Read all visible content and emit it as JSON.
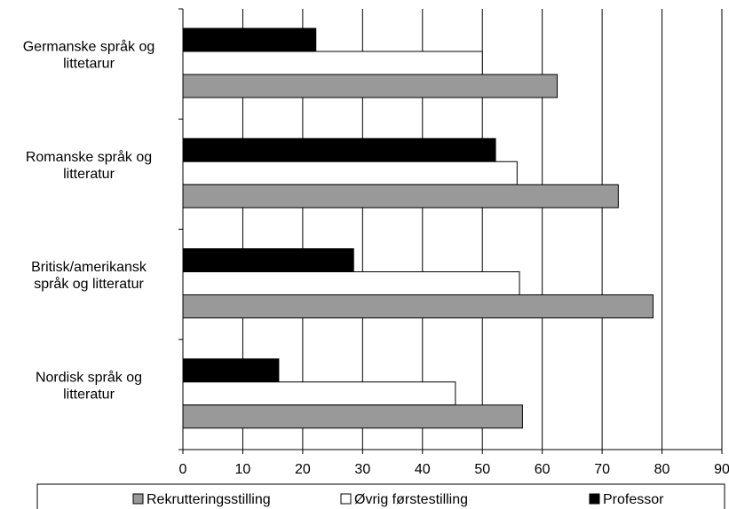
{
  "chart_data": {
    "type": "bar",
    "orientation": "horizontal",
    "categories": [
      [
        "Germanske språk og",
        "littetarur"
      ],
      [
        "Romanske språk og",
        "litteratur"
      ],
      [
        "Britisk/amerikansk",
        "språk og litteratur"
      ],
      [
        "Nordisk språk og",
        "litteratur"
      ]
    ],
    "series": [
      {
        "name": "Professor",
        "color": "#000000",
        "values": [
          22.2,
          52.2,
          28.5,
          16.0
        ]
      },
      {
        "name": "Øvrig førstestilling",
        "color": "#ffffff",
        "values": [
          50.0,
          55.8,
          56.2,
          45.5
        ]
      },
      {
        "name": "Rekrutteringsstilling",
        "color": "#999999",
        "values": [
          62.5,
          72.7,
          78.5,
          56.7
        ]
      }
    ],
    "legend_order": [
      "Rekrutteringsstilling",
      "Øvrig førstestilling",
      "Professor"
    ],
    "xlim": [
      0,
      90
    ],
    "x_ticks": [
      0,
      10,
      20,
      30,
      40,
      50,
      60,
      70,
      80,
      90
    ],
    "grid": "vertical",
    "legend_position": "bottom",
    "title": "",
    "xlabel": "",
    "ylabel": ""
  }
}
